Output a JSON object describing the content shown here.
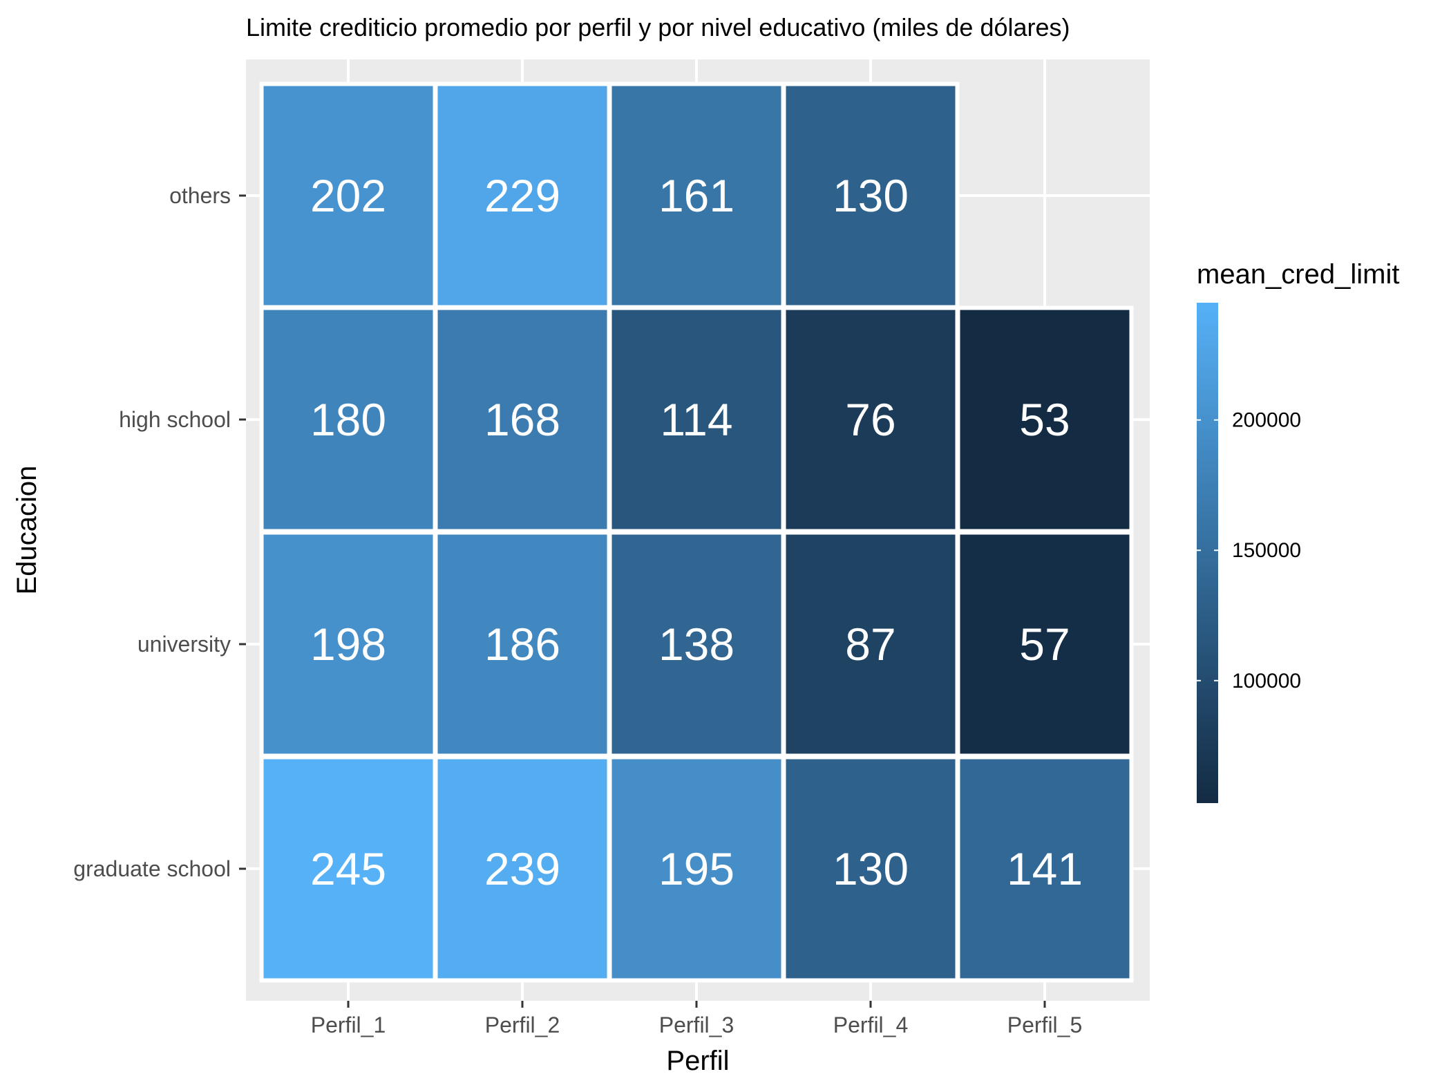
{
  "chart_data": {
    "type": "heatmap",
    "title": "Limite crediticio promedio por perfil y por nivel educativo (miles de dólares)",
    "xlabel": "Perfil",
    "ylabel": "Educacion",
    "x_categories": [
      "Perfil_1",
      "Perfil_2",
      "Perfil_3",
      "Perfil_4",
      "Perfil_5"
    ],
    "y_categories": [
      "graduate school",
      "university",
      "high school",
      "others"
    ],
    "cells": [
      {
        "x": "Perfil_1",
        "y": "others",
        "value": 202,
        "label": "202"
      },
      {
        "x": "Perfil_2",
        "y": "others",
        "value": 229,
        "label": "229"
      },
      {
        "x": "Perfil_3",
        "y": "others",
        "value": 161,
        "label": "161"
      },
      {
        "x": "Perfil_4",
        "y": "others",
        "value": 130,
        "label": "130"
      },
      {
        "x": "Perfil_1",
        "y": "high school",
        "value": 180,
        "label": "180"
      },
      {
        "x": "Perfil_2",
        "y": "high school",
        "value": 168,
        "label": "168"
      },
      {
        "x": "Perfil_3",
        "y": "high school",
        "value": 114,
        "label": "114"
      },
      {
        "x": "Perfil_4",
        "y": "high school",
        "value": 76,
        "label": "76"
      },
      {
        "x": "Perfil_5",
        "y": "high school",
        "value": 53,
        "label": "53"
      },
      {
        "x": "Perfil_1",
        "y": "university",
        "value": 198,
        "label": "198"
      },
      {
        "x": "Perfil_2",
        "y": "university",
        "value": 186,
        "label": "186"
      },
      {
        "x": "Perfil_3",
        "y": "university",
        "value": 138,
        "label": "138"
      },
      {
        "x": "Perfil_4",
        "y": "university",
        "value": 87,
        "label": "87"
      },
      {
        "x": "Perfil_5",
        "y": "university",
        "value": 57,
        "label": "57"
      },
      {
        "x": "Perfil_1",
        "y": "graduate school",
        "value": 245,
        "label": "245"
      },
      {
        "x": "Perfil_2",
        "y": "graduate school",
        "value": 239,
        "label": "239"
      },
      {
        "x": "Perfil_3",
        "y": "graduate school",
        "value": 195,
        "label": "195"
      },
      {
        "x": "Perfil_4",
        "y": "graduate school",
        "value": 130,
        "label": "130"
      },
      {
        "x": "Perfil_5",
        "y": "graduate school",
        "value": 141,
        "label": "141"
      }
    ],
    "legend": {
      "title": "mean_cred_limit",
      "placement": "right",
      "ticks": [
        {
          "value": 200000,
          "label": "200000"
        },
        {
          "value": 150000,
          "label": "150000"
        },
        {
          "value": 100000,
          "label": "100000"
        }
      ],
      "range": [
        53000,
        245000
      ],
      "color_low": "#132b43",
      "color_high": "#56b1f7"
    },
    "grid": true,
    "panel_background": "#ebebeb",
    "cell_border_color": "#ffffff"
  }
}
